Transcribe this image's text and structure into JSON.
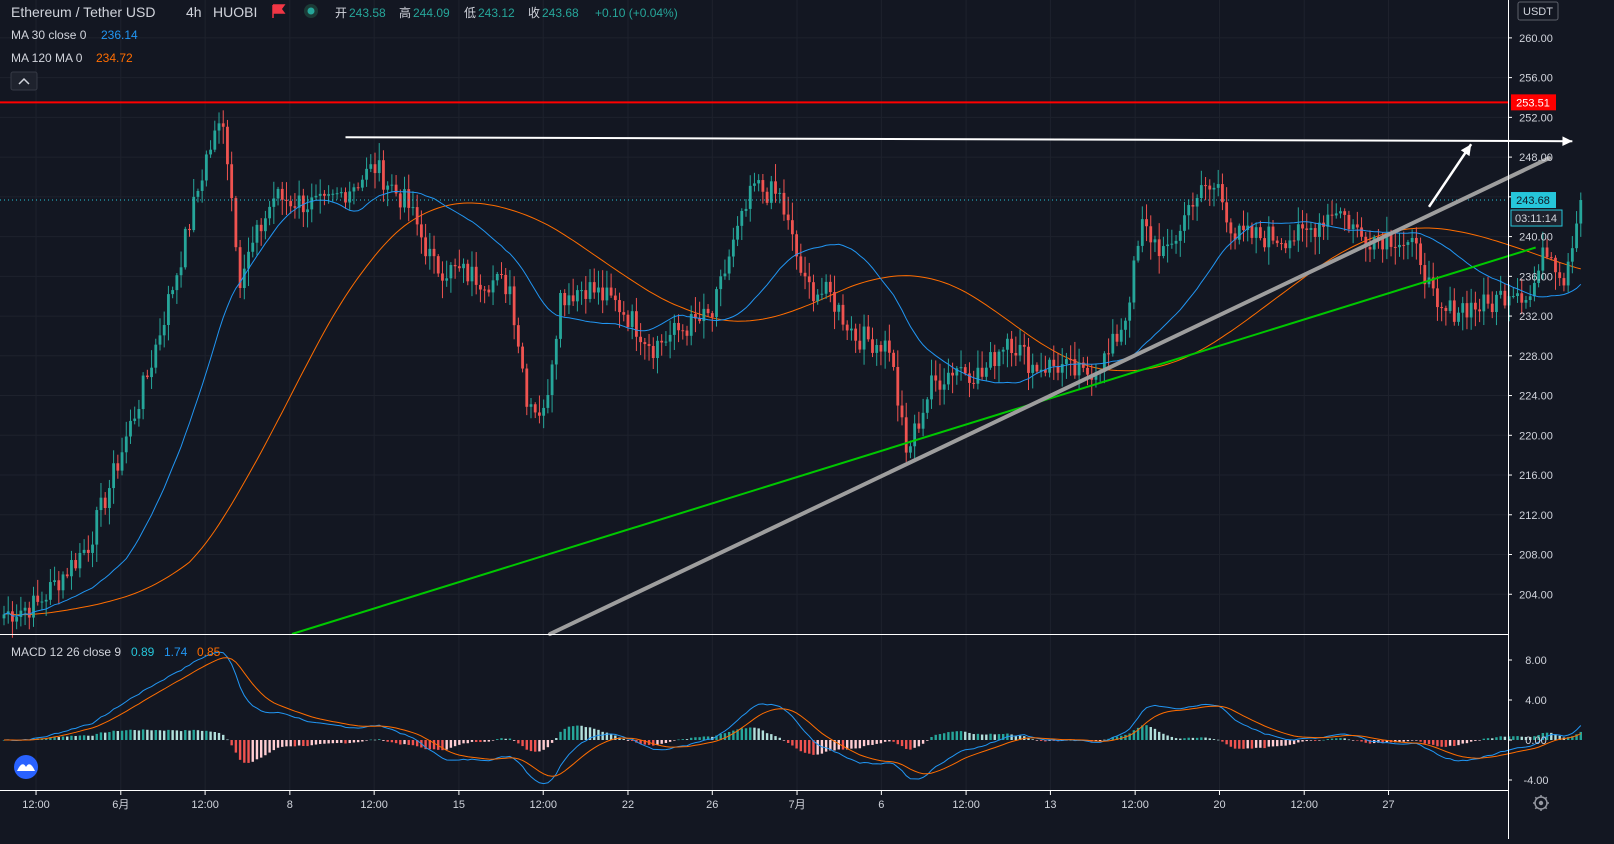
{
  "header": {
    "symbol": "Ethereum / Tether USD",
    "interval": "4h",
    "exchange": "HUOBI",
    "open_label": "开",
    "open": "243.58",
    "high_label": "高",
    "high": "244.09",
    "low_label": "低",
    "low": "243.12",
    "close_label": "收",
    "close": "243.68",
    "change": "+0.10 (+0.04%)",
    "ma30_label": "MA 30 close 0",
    "ma30_value": "236.14",
    "ma120_label": "MA 120 MA 0",
    "ma120_value": "234.72",
    "collapse_icon": "chevron-up-icon",
    "flag_icon": "flag-icon",
    "status_icon": "live-dot-icon"
  },
  "macd_header": {
    "label": "MACD 12 26 close 9",
    "macd": "0.89",
    "signal": "1.74",
    "hist": "0.85"
  },
  "price_scale": {
    "currency": "USDT",
    "ticks": [
      "260.00",
      "256.00",
      "252.00",
      "248.00",
      "244.00",
      "240.00",
      "236.00",
      "232.00",
      "228.00",
      "224.00",
      "220.00",
      "216.00",
      "212.00",
      "208.00",
      "204.00"
    ],
    "resistance_label": "253.51",
    "last_price_label": "243.68",
    "countdown_label": "03:11:14"
  },
  "macd_scale": {
    "ticks": [
      "8.00",
      "4.00",
      "0.00",
      "-4.00"
    ]
  },
  "time_scale": {
    "labels": [
      "12:00",
      "6月",
      "12:00",
      "8",
      "12:00",
      "15",
      "12:00",
      "22",
      "26",
      "7月",
      "6",
      "12:00",
      "13",
      "12:00",
      "20",
      "12:00",
      "27"
    ],
    "settings_icon": "gear-icon"
  },
  "colors": {
    "background": "#131722",
    "up": "#26a69a",
    "down": "#ef5350",
    "ma30": "#2196f3",
    "ma120": "#ff6d00",
    "resistance": "#ff0000",
    "support_trendline": "#00c800",
    "rising_trendline": "#9e9e9e",
    "projection": "#ffffff",
    "last_price": "#26c6da",
    "macd_line": "#2196f3",
    "signal_line": "#ff6d00"
  },
  "chart_data": {
    "type": "candlestick",
    "title": "Ethereum / Tether USD",
    "interval": "4h",
    "y_unit": "USDT",
    "ylim": [
      200,
      262
    ],
    "last_price": 243.68,
    "horizontal_levels": [
      {
        "name": "resistance",
        "price": 253.51
      }
    ],
    "anchors": [
      {
        "x": 0,
        "y": 202
      },
      {
        "x": 8,
        "y": 203
      },
      {
        "x": 14,
        "y": 206
      },
      {
        "x": 20,
        "y": 209
      },
      {
        "x": 26,
        "y": 216
      },
      {
        "x": 34,
        "y": 226
      },
      {
        "x": 42,
        "y": 238
      },
      {
        "x": 48,
        "y": 248
      },
      {
        "x": 52,
        "y": 252
      },
      {
        "x": 56,
        "y": 236
      },
      {
        "x": 64,
        "y": 244
      },
      {
        "x": 76,
        "y": 243
      },
      {
        "x": 88,
        "y": 247
      },
      {
        "x": 96,
        "y": 243
      },
      {
        "x": 102,
        "y": 237
      },
      {
        "x": 112,
        "y": 236
      },
      {
        "x": 120,
        "y": 235
      },
      {
        "x": 124,
        "y": 224
      },
      {
        "x": 128,
        "y": 222
      },
      {
        "x": 132,
        "y": 234
      },
      {
        "x": 138,
        "y": 235
      },
      {
        "x": 146,
        "y": 233
      },
      {
        "x": 154,
        "y": 229
      },
      {
        "x": 162,
        "y": 231
      },
      {
        "x": 168,
        "y": 232
      },
      {
        "x": 172,
        "y": 238
      },
      {
        "x": 178,
        "y": 245
      },
      {
        "x": 184,
        "y": 244
      },
      {
        "x": 190,
        "y": 235
      },
      {
        "x": 196,
        "y": 234
      },
      {
        "x": 202,
        "y": 230
      },
      {
        "x": 210,
        "y": 229
      },
      {
        "x": 214,
        "y": 218
      },
      {
        "x": 220,
        "y": 225
      },
      {
        "x": 226,
        "y": 227
      },
      {
        "x": 232,
        "y": 226
      },
      {
        "x": 238,
        "y": 230
      },
      {
        "x": 244,
        "y": 227
      },
      {
        "x": 250,
        "y": 227
      },
      {
        "x": 256,
        "y": 226
      },
      {
        "x": 262,
        "y": 228
      },
      {
        "x": 266,
        "y": 232
      },
      {
        "x": 270,
        "y": 241
      },
      {
        "x": 276,
        "y": 238
      },
      {
        "x": 282,
        "y": 244
      },
      {
        "x": 288,
        "y": 245
      },
      {
        "x": 292,
        "y": 240
      },
      {
        "x": 300,
        "y": 240
      },
      {
        "x": 308,
        "y": 240
      },
      {
        "x": 316,
        "y": 243
      },
      {
        "x": 322,
        "y": 240
      },
      {
        "x": 330,
        "y": 240
      },
      {
        "x": 336,
        "y": 238
      },
      {
        "x": 340,
        "y": 232
      },
      {
        "x": 346,
        "y": 233
      },
      {
        "x": 352,
        "y": 233
      },
      {
        "x": 358,
        "y": 235
      },
      {
        "x": 362,
        "y": 234
      },
      {
        "x": 366,
        "y": 239
      },
      {
        "x": 370,
        "y": 236
      },
      {
        "x": 374,
        "y": 243.68
      }
    ],
    "series": [
      {
        "name": "MA 30 close 0",
        "last_value": 236.14
      },
      {
        "name": "MA 120 MA 0",
        "last_value": 234.72
      }
    ],
    "macd": {
      "label": "MACD 12 26 close 9",
      "params": [
        12,
        26,
        9
      ],
      "ylim": [
        -5,
        10
      ],
      "last": {
        "macd": 0.89,
        "signal": 1.74,
        "histogram": 0.85
      }
    },
    "drawings": {
      "resistance_projection": [
        {
          "t": 81,
          "p": 250.0
        },
        {
          "t": 372,
          "p": 249.6
        }
      ],
      "arrow_up": [
        {
          "t": 338,
          "p": 243.0
        },
        {
          "t": 348,
          "p": 249.3
        }
      ],
      "rising_trendline": [
        {
          "t": 129.5,
          "p": 200.0
        },
        {
          "t": 366.5,
          "p": 247.9
        }
      ],
      "support_trendline": [
        {
          "t": 68.3,
          "p": 200.0
        },
        {
          "t": 363.3,
          "p": 238.9
        }
      ]
    },
    "x_tick_positions": [
      7.6,
      27.7,
      47.7,
      67.8,
      87.8,
      107.9,
      127.9,
      148.0,
      168.0,
      188.1,
      208.1,
      228.2,
      248.2,
      268.3,
      288.3,
      308.4,
      328.4
    ]
  }
}
